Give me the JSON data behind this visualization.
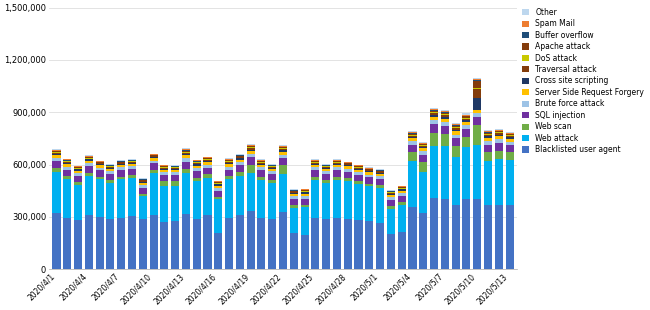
{
  "dates": [
    "2020/4/1",
    "2020/4/2",
    "2020/4/3",
    "2020/4/4",
    "2020/4/5",
    "2020/4/6",
    "2020/4/7",
    "2020/4/8",
    "2020/4/9",
    "2020/4/10",
    "2020/4/11",
    "2020/4/12",
    "2020/4/13",
    "2020/4/14",
    "2020/4/15",
    "2020/4/16",
    "2020/4/17",
    "2020/4/18",
    "2020/4/19",
    "2020/4/20",
    "2020/4/21",
    "2020/4/22",
    "2020/4/23",
    "2020/4/24",
    "2020/4/25",
    "2020/4/26",
    "2020/4/27",
    "2020/4/28",
    "2020/4/29",
    "2020/4/30",
    "2020/5/1",
    "2020/5/2",
    "2020/5/3",
    "2020/5/4",
    "2020/5/5",
    "2020/5/6",
    "2020/5/7",
    "2020/5/8",
    "2020/5/9",
    "2020/5/10",
    "2020/5/11",
    "2020/5/12",
    "2020/5/13"
  ],
  "tick_dates": [
    "2020/4/1",
    "2020/4/4",
    "2020/4/7",
    "2020/4/10",
    "2020/4/13",
    "2020/4/16",
    "2020/4/19",
    "2020/4/22",
    "2020/4/25",
    "2020/4/28",
    "2020/5/1",
    "2020/5/4",
    "2020/5/7",
    "2020/5/10",
    "2020/5/13"
  ],
  "series": {
    "Blacklisted user agent": [
      320000,
      295000,
      280000,
      310000,
      300000,
      285000,
      295000,
      305000,
      290000,
      310000,
      270000,
      275000,
      315000,
      290000,
      310000,
      210000,
      295000,
      310000,
      335000,
      295000,
      285000,
      330000,
      205000,
      195000,
      295000,
      285000,
      295000,
      290000,
      280000,
      275000,
      265000,
      200000,
      215000,
      355000,
      320000,
      410000,
      400000,
      365000,
      400000,
      400000,
      365000,
      370000,
      370000
    ],
    "Web attack": [
      235000,
      220000,
      205000,
      225000,
      215000,
      210000,
      220000,
      215000,
      130000,
      240000,
      205000,
      200000,
      235000,
      215000,
      215000,
      190000,
      220000,
      225000,
      215000,
      215000,
      210000,
      215000,
      145000,
      160000,
      215000,
      210000,
      215000,
      215000,
      210000,
      200000,
      200000,
      145000,
      155000,
      265000,
      240000,
      295000,
      305000,
      280000,
      300000,
      310000,
      255000,
      260000,
      255000
    ],
    "Web scan": [
      25000,
      18000,
      15000,
      18000,
      15000,
      15000,
      15000,
      18000,
      12000,
      18000,
      30000,
      30000,
      25000,
      20000,
      18000,
      15000,
      18000,
      20000,
      50000,
      18000,
      15000,
      50000,
      15000,
      15000,
      18000,
      15000,
      18000,
      18000,
      15000,
      15000,
      15000,
      15000,
      15000,
      50000,
      55000,
      75000,
      70000,
      60000,
      60000,
      115000,
      50000,
      50000,
      45000
    ],
    "SQL injection": [
      40000,
      38000,
      36000,
      38000,
      36000,
      35000,
      37000,
      36000,
      35000,
      38000,
      36000,
      35000,
      42000,
      38000,
      38000,
      35000,
      38000,
      40000,
      42000,
      38000,
      36000,
      42000,
      36000,
      35000,
      38000,
      36000,
      38000,
      37000,
      36000,
      36000,
      36000,
      36000,
      36000,
      44000,
      42000,
      50000,
      48000,
      46000,
      44000,
      48000,
      44000,
      44000,
      42000
    ],
    "Brute force attack": [
      18000,
      17000,
      16000,
      17000,
      16000,
      16000,
      16000,
      16000,
      15000,
      16000,
      16000,
      15000,
      19000,
      17000,
      17000,
      16000,
      17000,
      18000,
      19000,
      17000,
      16000,
      19000,
      16000,
      15000,
      17000,
      16000,
      17000,
      16000,
      16000,
      16000,
      16000,
      16000,
      16000,
      20000,
      19000,
      23000,
      22000,
      21000,
      21000,
      22000,
      20000,
      20000,
      19000
    ],
    "Server Side Request Forgery": [
      15000,
      14000,
      13000,
      14000,
      13000,
      13000,
      13000,
      13000,
      12000,
      13000,
      13000,
      13000,
      16000,
      14000,
      14000,
      13000,
      14000,
      14000,
      16000,
      14000,
      13000,
      16000,
      13000,
      13000,
      14000,
      13000,
      14000,
      13000,
      13000,
      13000,
      13000,
      13000,
      13000,
      16000,
      16000,
      19000,
      18000,
      18000,
      18000,
      19000,
      17000,
      17000,
      16000
    ],
    "Cross site scripting": [
      8000,
      7000,
      7000,
      7000,
      7000,
      7000,
      7000,
      7000,
      6000,
      7000,
      7000,
      7000,
      9000,
      8000,
      8000,
      7000,
      8000,
      8000,
      9000,
      8000,
      7000,
      9000,
      7000,
      7000,
      8000,
      7000,
      8000,
      7000,
      7000,
      7000,
      7000,
      7000,
      7000,
      9000,
      8000,
      12000,
      11000,
      11000,
      11000,
      70000,
      11000,
      10000,
      9000
    ],
    "Traversal attack": [
      6000,
      5000,
      5000,
      5000,
      5000,
      5000,
      5000,
      5000,
      5000,
      5000,
      5000,
      5000,
      7000,
      6000,
      6000,
      5000,
      6000,
      6000,
      7000,
      6000,
      5000,
      7000,
      5000,
      5000,
      6000,
      5000,
      6000,
      5000,
      5000,
      5000,
      5000,
      5000,
      5000,
      7000,
      6000,
      9000,
      9000,
      9000,
      9000,
      50000,
      9000,
      8000,
      7000
    ],
    "DoS attack": [
      4000,
      4000,
      3000,
      4000,
      3000,
      3000,
      3000,
      3000,
      3000,
      3000,
      3000,
      3000,
      5000,
      4000,
      4000,
      3000,
      4000,
      4000,
      5000,
      4000,
      3000,
      5000,
      3000,
      3000,
      4000,
      3000,
      4000,
      3000,
      3000,
      3000,
      3000,
      3000,
      3000,
      5000,
      4000,
      6000,
      6000,
      6000,
      6000,
      6000,
      5000,
      5000,
      5000
    ],
    "Apache attack": [
      5000,
      5000,
      4000,
      5000,
      4000,
      4000,
      4000,
      4000,
      4000,
      4000,
      4000,
      4000,
      6000,
      5000,
      5000,
      4000,
      5000,
      5000,
      6000,
      5000,
      4000,
      6000,
      4000,
      4000,
      5000,
      4000,
      5000,
      4000,
      4000,
      4000,
      4000,
      4000,
      4000,
      6000,
      5000,
      8000,
      8000,
      7000,
      7000,
      40000,
      7000,
      6000,
      6000
    ],
    "Buffer overflow": [
      3000,
      3000,
      3000,
      3000,
      3000,
      3000,
      3000,
      3000,
      3000,
      3000,
      3000,
      3000,
      4000,
      3000,
      3000,
      3000,
      3000,
      3000,
      4000,
      3000,
      3000,
      4000,
      3000,
      3000,
      3000,
      3000,
      3000,
      3000,
      3000,
      3000,
      3000,
      3000,
      3000,
      4000,
      4000,
      5000,
      5000,
      5000,
      5000,
      5000,
      4000,
      4000,
      4000
    ],
    "Spam Mail": [
      4000,
      3000,
      3000,
      4000,
      3000,
      3000,
      3000,
      3000,
      3000,
      3000,
      3000,
      3000,
      5000,
      4000,
      4000,
      3000,
      4000,
      4000,
      5000,
      4000,
      3000,
      5000,
      3000,
      3000,
      4000,
      3000,
      4000,
      3000,
      3000,
      3000,
      3000,
      3000,
      3000,
      5000,
      4000,
      6000,
      6000,
      6000,
      6000,
      6000,
      5000,
      5000,
      5000
    ],
    "Other": [
      4000,
      3000,
      3000,
      4000,
      3000,
      3000,
      3000,
      3000,
      3000,
      3000,
      3000,
      3000,
      5000,
      4000,
      4000,
      3000,
      4000,
      4000,
      5000,
      4000,
      3000,
      5000,
      3000,
      3000,
      4000,
      3000,
      4000,
      3000,
      3000,
      3000,
      3000,
      3000,
      3000,
      5000,
      4000,
      6000,
      6000,
      6000,
      6000,
      6000,
      5000,
      5000,
      5000
    ]
  },
  "colors": {
    "Blacklisted user agent": "#4472C4",
    "Web attack": "#00B0F0",
    "Web scan": "#70AD47",
    "SQL injection": "#7030A0",
    "Brute force attack": "#9DC3E6",
    "Server Side Request Forgery": "#FFC000",
    "Cross site scripting": "#1F3864",
    "Traversal attack": "#833C0B",
    "DoS attack": "#C9C900",
    "Apache attack": "#843C0C",
    "Buffer overflow": "#1F4E79",
    "Spam Mail": "#ED7D31",
    "Other": "#BDD7EE"
  },
  "legend_order": [
    "Other",
    "Spam Mail",
    "Buffer overflow",
    "Apache attack",
    "DoS attack",
    "Traversal attack",
    "Cross site scripting",
    "Server Side Request Forgery",
    "Brute force attack",
    "SQL injection",
    "Web scan",
    "Web attack",
    "Blacklisted user agent"
  ],
  "stack_order": [
    "Blacklisted user agent",
    "Web attack",
    "Web scan",
    "SQL injection",
    "Brute force attack",
    "Server Side Request Forgery",
    "Cross site scripting",
    "Traversal attack",
    "DoS attack",
    "Apache attack",
    "Buffer overflow",
    "Spam Mail",
    "Other"
  ],
  "ylim": [
    0,
    1500000
  ],
  "yticks": [
    0,
    300000,
    600000,
    900000,
    1200000,
    1500000
  ]
}
